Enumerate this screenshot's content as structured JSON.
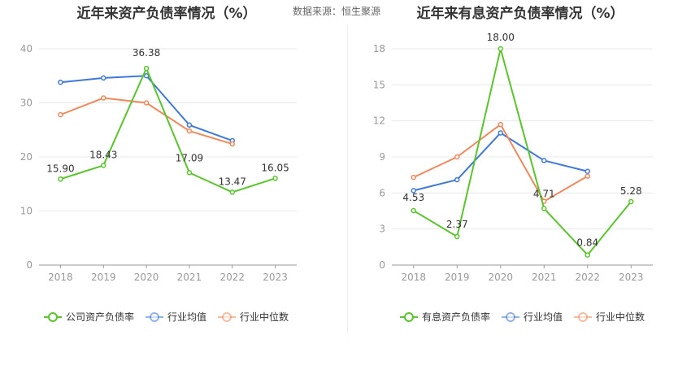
{
  "header": {
    "source_label": "数据来源：恒生聚源"
  },
  "colors": {
    "company": "#5ac42d",
    "industry_avg": "#3f78d8",
    "industry_median": "#f0885c",
    "grid": "#e8e8e8",
    "axis_text": "#999999",
    "label_text": "#333333"
  },
  "chart_data": [
    {
      "type": "line",
      "title": "近年来资产负债率情况（%）",
      "categories": [
        "2018",
        "2019",
        "2020",
        "2021",
        "2022",
        "2023"
      ],
      "ylim": [
        0,
        40
      ],
      "yticks": [
        "0",
        "10",
        "20",
        "30",
        "40"
      ],
      "grid": true,
      "legend_position": "bottom",
      "series": [
        {
          "name": "公司资产负债率",
          "color_key": "company",
          "values": [
            15.9,
            18.43,
            36.38,
            17.09,
            13.47,
            16.05
          ],
          "labels": [
            "15.90",
            "18.43",
            "36.38",
            "17.09",
            "13.47",
            "16.05"
          ]
        },
        {
          "name": "行业均值",
          "color_key": "industry_avg",
          "values": [
            33.8,
            34.6,
            35.0,
            25.9,
            23.0,
            null
          ]
        },
        {
          "name": "行业中位数",
          "color_key": "industry_median",
          "values": [
            27.8,
            30.9,
            30.0,
            24.8,
            22.4,
            null
          ]
        }
      ]
    },
    {
      "type": "line",
      "title": "近年来有息资产负债率情况（%）",
      "categories": [
        "2018",
        "2019",
        "2020",
        "2021",
        "2022",
        "2023"
      ],
      "ylim": [
        0,
        18
      ],
      "yticks": [
        "0",
        "3",
        "6",
        "9",
        "12",
        "15",
        "18"
      ],
      "grid": true,
      "legend_position": "bottom",
      "series": [
        {
          "name": "有息资产负债率",
          "color_key": "company",
          "values": [
            4.53,
            2.37,
            18.0,
            4.71,
            0.84,
            5.28
          ],
          "labels": [
            "4.53",
            "2.37",
            "18.00",
            "4.71",
            "0.84",
            "5.28"
          ]
        },
        {
          "name": "行业均值",
          "color_key": "industry_avg",
          "values": [
            6.2,
            7.1,
            11.0,
            8.7,
            7.8,
            null
          ]
        },
        {
          "name": "行业中位数",
          "color_key": "industry_median",
          "values": [
            7.3,
            9.0,
            11.7,
            5.3,
            7.4,
            null
          ]
        }
      ]
    }
  ]
}
